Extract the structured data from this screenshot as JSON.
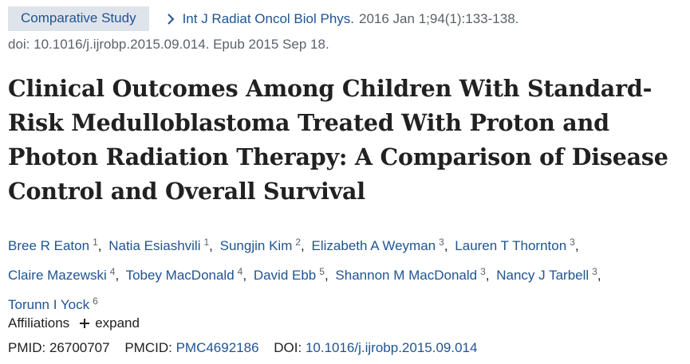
{
  "header": {
    "article_type_badge": "Comparative Study",
    "journal_name": "Int J Radiat Oncol Biol Phys.",
    "citation": "2016 Jan 1;94(1):133-138.",
    "doi_line": "doi: 10.1016/j.ijrobp.2015.09.014. Epub 2015 Sep 18."
  },
  "title": {
    "line1": "Clinical Outcomes Among Children With Standard-",
    "line2": "Risk Medulloblastoma Treated With Proton and",
    "line3": "Photon Radiation Therapy: A Comparison of Disease",
    "line4": "Control and Overall Survival"
  },
  "authors": [
    {
      "name": "Bree R Eaton",
      "affil": "1"
    },
    {
      "name": "Natia Esiashvili",
      "affil": "1"
    },
    {
      "name": "Sungjin Kim",
      "affil": "2"
    },
    {
      "name": "Elizabeth A Weyman",
      "affil": "3"
    },
    {
      "name": "Lauren T Thornton",
      "affil": "3"
    },
    {
      "name": "Claire Mazewski",
      "affil": "4"
    },
    {
      "name": "Tobey MacDonald",
      "affil": "4"
    },
    {
      "name": "David Ebb",
      "affil": "5"
    },
    {
      "name": "Shannon M MacDonald",
      "affil": "3"
    },
    {
      "name": "Nancy J Tarbell",
      "affil": "3"
    },
    {
      "name": "Torunn I Yock",
      "affil": "6"
    }
  ],
  "affiliations": {
    "label": "Affiliations",
    "expand_label": "expand",
    "expand_icon": "plus-icon"
  },
  "identifiers": {
    "pmid_label": "PMID:",
    "pmid": "26700707",
    "pmcid_label": "PMCID:",
    "pmcid": "PMC4692186",
    "doi_label": "DOI:",
    "doi": "10.1016/j.ijrobp.2015.09.014"
  },
  "colors": {
    "link": "#205493",
    "badge_bg": "#dfe4ea",
    "muted": "#5b616b",
    "text": "#212121"
  }
}
